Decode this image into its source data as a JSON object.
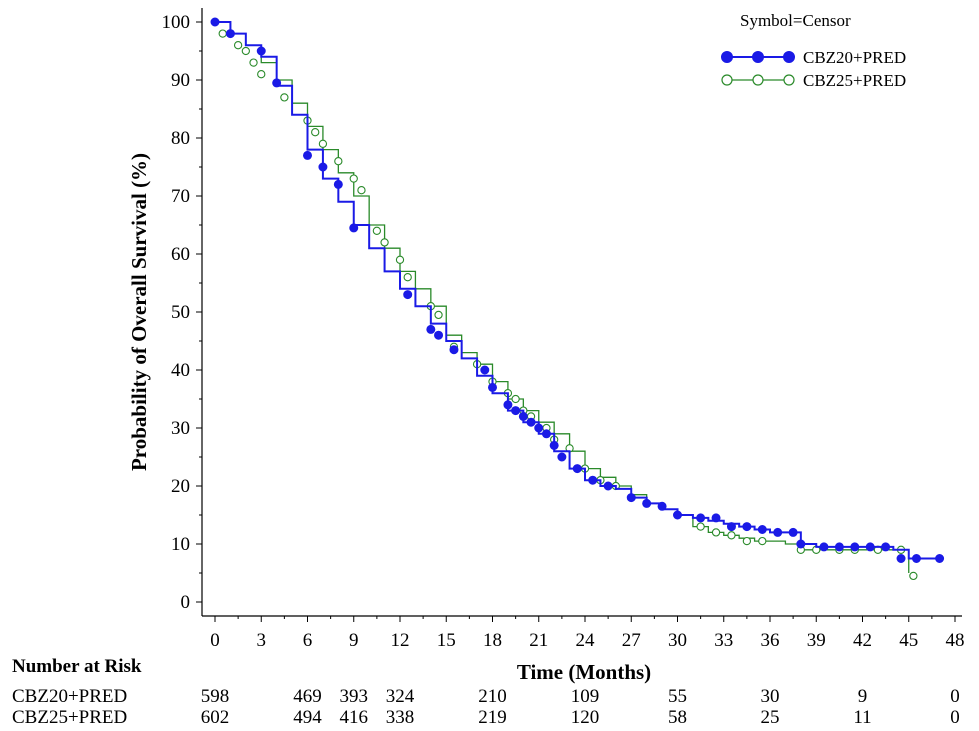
{
  "chart_data": {
    "type": "line",
    "title": "",
    "xlabel": "Time (Months)",
    "ylabel": "Probability of Overall Survival (%)",
    "xlim": [
      0,
      48
    ],
    "ylim": [
      0,
      100
    ],
    "x_ticks": [
      "0",
      "3",
      "6",
      "9",
      "12",
      "15",
      "18",
      "21",
      "24",
      "27",
      "30",
      "33",
      "36",
      "39",
      "42",
      "45",
      "48"
    ],
    "y_ticks": [
      "0",
      "10",
      "20",
      "30",
      "40",
      "50",
      "60",
      "70",
      "80",
      "90",
      "100"
    ],
    "legend": {
      "title": "Symbol=Censor",
      "position": "top-right"
    },
    "series": [
      {
        "name": "CBZ20+PRED",
        "color": "#1a1ae6",
        "marker": "filled-circle",
        "points": [
          [
            0,
            100
          ],
          [
            1,
            98
          ],
          [
            2,
            96
          ],
          [
            3,
            94
          ],
          [
            4,
            89
          ],
          [
            5,
            84
          ],
          [
            6,
            78
          ],
          [
            7,
            73
          ],
          [
            8,
            69
          ],
          [
            9,
            65
          ],
          [
            10,
            61
          ],
          [
            11,
            57
          ],
          [
            12,
            54
          ],
          [
            13,
            51
          ],
          [
            14,
            48
          ],
          [
            15,
            45
          ],
          [
            16,
            42
          ],
          [
            17,
            39
          ],
          [
            18,
            36
          ],
          [
            19,
            33
          ],
          [
            20,
            31
          ],
          [
            21,
            29
          ],
          [
            22,
            26
          ],
          [
            23,
            23
          ],
          [
            24,
            21
          ],
          [
            25,
            20
          ],
          [
            26,
            19.5
          ],
          [
            27,
            18
          ],
          [
            28,
            17
          ],
          [
            29,
            16
          ],
          [
            30,
            15
          ],
          [
            31,
            14.5
          ],
          [
            32,
            14
          ],
          [
            33,
            13.5
          ],
          [
            34,
            13
          ],
          [
            35,
            12.5
          ],
          [
            36,
            12
          ],
          [
            37,
            12
          ],
          [
            38,
            10
          ],
          [
            39,
            9.5
          ],
          [
            40,
            9.5
          ],
          [
            41,
            9.5
          ],
          [
            42,
            9.5
          ],
          [
            43,
            9.5
          ],
          [
            44,
            9
          ],
          [
            45,
            7.5
          ],
          [
            46,
            7.5
          ],
          [
            47,
            7.5
          ]
        ],
        "censored": [
          [
            0,
            100
          ],
          [
            1,
            98
          ],
          [
            3,
            95
          ],
          [
            4,
            89.5
          ],
          [
            6,
            77
          ],
          [
            7,
            75
          ],
          [
            8,
            72
          ],
          [
            9,
            64.5
          ],
          [
            12.5,
            53
          ],
          [
            14,
            47
          ],
          [
            14.5,
            46
          ],
          [
            15.5,
            43.5
          ],
          [
            17.5,
            40
          ],
          [
            18,
            37
          ],
          [
            19,
            34
          ],
          [
            19.5,
            33
          ],
          [
            20,
            32
          ],
          [
            20.5,
            31
          ],
          [
            21,
            30
          ],
          [
            21.5,
            29
          ],
          [
            22,
            27
          ],
          [
            22.5,
            25
          ],
          [
            23.5,
            23
          ],
          [
            24.5,
            21
          ],
          [
            25.5,
            20
          ],
          [
            27,
            18
          ],
          [
            28,
            17
          ],
          [
            29,
            16.5
          ],
          [
            30,
            15
          ],
          [
            31.5,
            14.5
          ],
          [
            32.5,
            14.5
          ],
          [
            33.5,
            13
          ],
          [
            34.5,
            13
          ],
          [
            35.5,
            12.5
          ],
          [
            36.5,
            12
          ],
          [
            37.5,
            12
          ],
          [
            38,
            10
          ],
          [
            39.5,
            9.5
          ],
          [
            40.5,
            9.5
          ],
          [
            41.5,
            9.5
          ],
          [
            42.5,
            9.5
          ],
          [
            43.5,
            9.5
          ],
          [
            44.5,
            7.5
          ],
          [
            45.5,
            7.5
          ],
          [
            47,
            7.5
          ]
        ]
      },
      {
        "name": "CBZ25+PRED",
        "color": "#2a8a2a",
        "marker": "open-circle",
        "points": [
          [
            0,
            100
          ],
          [
            1,
            98
          ],
          [
            2,
            96
          ],
          [
            3,
            93
          ],
          [
            4,
            90
          ],
          [
            5,
            86
          ],
          [
            6,
            82
          ],
          [
            7,
            78
          ],
          [
            8,
            74
          ],
          [
            9,
            70
          ],
          [
            10,
            65
          ],
          [
            11,
            61
          ],
          [
            12,
            57
          ],
          [
            13,
            54
          ],
          [
            14,
            51
          ],
          [
            15,
            46
          ],
          [
            16,
            43
          ],
          [
            17,
            41
          ],
          [
            18,
            38
          ],
          [
            19,
            35
          ],
          [
            20,
            33
          ],
          [
            21,
            31
          ],
          [
            22,
            29
          ],
          [
            23,
            26
          ],
          [
            24,
            23
          ],
          [
            25,
            21.5
          ],
          [
            26,
            20
          ],
          [
            27,
            18.5
          ],
          [
            28,
            17
          ],
          [
            29,
            16
          ],
          [
            30,
            15
          ],
          [
            31,
            13
          ],
          [
            32,
            12
          ],
          [
            33,
            11.5
          ],
          [
            34,
            11
          ],
          [
            35,
            10.5
          ],
          [
            36,
            10.5
          ],
          [
            37,
            10
          ],
          [
            38,
            9
          ],
          [
            39,
            9
          ],
          [
            40,
            9
          ],
          [
            41,
            9
          ],
          [
            42,
            9
          ],
          [
            43,
            9
          ],
          [
            44,
            9
          ],
          [
            45,
            5
          ]
        ],
        "censored": [
          [
            0.5,
            98
          ],
          [
            1.5,
            96
          ],
          [
            2,
            95
          ],
          [
            2.5,
            93
          ],
          [
            3,
            91
          ],
          [
            4.5,
            87
          ],
          [
            6,
            83
          ],
          [
            6.5,
            81
          ],
          [
            7,
            79
          ],
          [
            8,
            76
          ],
          [
            9,
            73
          ],
          [
            9.5,
            71
          ],
          [
            10.5,
            64
          ],
          [
            11,
            62
          ],
          [
            12,
            59
          ],
          [
            12.5,
            56
          ],
          [
            14,
            51
          ],
          [
            14.5,
            49.5
          ],
          [
            15.5,
            44
          ],
          [
            17,
            41
          ],
          [
            18,
            38
          ],
          [
            19,
            36
          ],
          [
            19.5,
            35
          ],
          [
            20,
            33
          ],
          [
            20.5,
            32
          ],
          [
            21.5,
            30
          ],
          [
            22,
            28
          ],
          [
            23,
            26.5
          ],
          [
            24,
            23
          ],
          [
            25,
            21
          ],
          [
            26,
            20
          ],
          [
            27,
            18
          ],
          [
            28,
            17
          ],
          [
            29,
            16.5
          ],
          [
            30,
            15
          ],
          [
            31.5,
            13
          ],
          [
            32.5,
            12
          ],
          [
            33.5,
            11.5
          ],
          [
            34.5,
            10.5
          ],
          [
            35.5,
            10.5
          ],
          [
            38,
            9
          ],
          [
            39,
            9
          ],
          [
            40.5,
            9
          ],
          [
            41.5,
            9
          ],
          [
            43,
            9
          ],
          [
            44.5,
            9
          ],
          [
            45.3,
            4.5
          ]
        ]
      }
    ],
    "risk_table": {
      "title": "Number at Risk",
      "rows": [
        {
          "label": "CBZ20+PRED",
          "values": [
            [
              "0",
              "598"
            ],
            [
              "6",
              "469"
            ],
            [
              "9",
              "393"
            ],
            [
              "12",
              "324"
            ],
            [
              "18",
              "210"
            ],
            [
              "24",
              "109"
            ],
            [
              "30",
              "55"
            ],
            [
              "36",
              "30"
            ],
            [
              "42",
              "9"
            ],
            [
              "48",
              "0"
            ]
          ]
        },
        {
          "label": "CBZ25+PRED",
          "values": [
            [
              "0",
              "602"
            ],
            [
              "6",
              "494"
            ],
            [
              "9",
              "416"
            ],
            [
              "12",
              "338"
            ],
            [
              "18",
              "219"
            ],
            [
              "24",
              "120"
            ],
            [
              "30",
              "58"
            ],
            [
              "36",
              "25"
            ],
            [
              "42",
              "11"
            ],
            [
              "48",
              "0"
            ]
          ]
        }
      ]
    }
  }
}
